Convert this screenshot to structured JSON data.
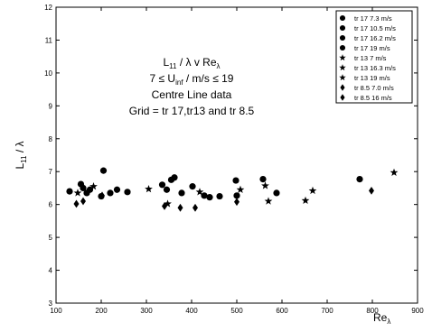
{
  "chart_data": {
    "type": "scatter",
    "title_lines": [
      "L₁₁ / λ   v   Re_λ",
      "7 ≤ U_inf / m/s ≤ 19",
      "Centre Line data",
      "Grid = tr 17,tr13 and tr 8.5"
    ],
    "xlabel": "Re_λ",
    "ylabel": "L₁₁ / λ",
    "xlim": [
      100,
      900
    ],
    "ylim": [
      3,
      12
    ],
    "xticks": [
      100,
      200,
      300,
      400,
      500,
      600,
      700,
      800,
      900
    ],
    "yticks": [
      3,
      4,
      5,
      6,
      7,
      8,
      9,
      10,
      11,
      12
    ],
    "grid": false,
    "legend_position": "top-right",
    "series": [
      {
        "name": "tr 17 7.3 m/s",
        "marker": "circle",
        "points": [
          [
            130,
            6.4
          ],
          [
            155,
            6.62
          ],
          [
            168,
            6.35
          ],
          [
            200,
            6.25
          ],
          [
            205,
            7.03
          ]
        ]
      },
      {
        "name": "tr 17 10.5 m/s",
        "marker": "circle",
        "points": [
          [
            160,
            6.5
          ],
          [
            175,
            6.45
          ],
          [
            220,
            6.35
          ],
          [
            235,
            6.45
          ],
          [
            258,
            6.38
          ]
        ]
      },
      {
        "name": "tr 17 16.2 m/s",
        "marker": "circle",
        "points": [
          [
            335,
            6.6
          ],
          [
            345,
            6.45
          ],
          [
            355,
            6.75
          ],
          [
            362,
            6.82
          ],
          [
            378,
            6.35
          ],
          [
            402,
            6.55
          ],
          [
            428,
            6.27
          ],
          [
            440,
            6.22
          ],
          [
            462,
            6.25
          ]
        ]
      },
      {
        "name": "tr 17 19 m/s",
        "marker": "circle",
        "points": [
          [
            498,
            6.73
          ],
          [
            500,
            6.27
          ],
          [
            558,
            6.77
          ],
          [
            588,
            6.35
          ],
          [
            772,
            6.77
          ]
        ]
      },
      {
        "name": "tr 13 7  m/s",
        "marker": "star",
        "points": [
          [
            148,
            6.35
          ],
          [
            183,
            6.55
          ]
        ]
      },
      {
        "name": "tr 13 16.3 m/s",
        "marker": "star",
        "points": [
          [
            305,
            6.47
          ],
          [
            347,
            6.02
          ],
          [
            418,
            6.38
          ],
          [
            508,
            6.45
          ],
          [
            563,
            6.57
          ]
        ]
      },
      {
        "name": "tr 13 19 m/s",
        "marker": "star",
        "points": [
          [
            570,
            6.1
          ],
          [
            652,
            6.12
          ],
          [
            668,
            6.42
          ],
          [
            848,
            6.97
          ]
        ]
      },
      {
        "name": "tr 8.5 7.0 m/s",
        "marker": "diamond",
        "points": [
          [
            145,
            6.02
          ],
          [
            160,
            6.1
          ],
          [
            202,
            6.27
          ]
        ]
      },
      {
        "name": "tr 8.5 16 m/s",
        "marker": "diamond",
        "points": [
          [
            340,
            5.95
          ],
          [
            375,
            5.9
          ],
          [
            408,
            5.9
          ],
          [
            500,
            6.08
          ],
          [
            798,
            6.42
          ]
        ]
      }
    ]
  }
}
